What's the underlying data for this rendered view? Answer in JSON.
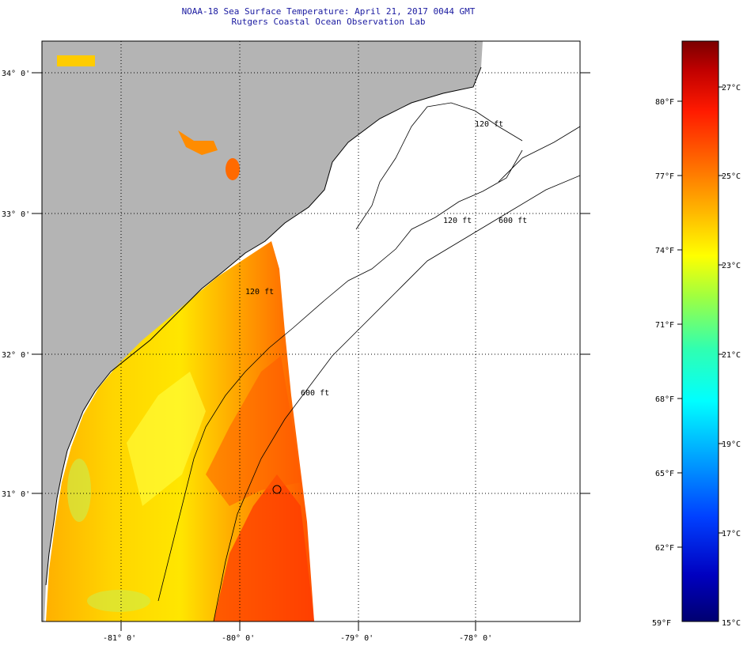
{
  "header": {
    "title_line1": "NOAA-18 Sea Surface Temperature:  April 21, 2017 0044 GMT",
    "title_line2": "Rutgers Coastal Ocean Observation Lab"
  },
  "map": {
    "lat_labels": [
      "34° 0'",
      "33° 0'",
      "32° 0'",
      "31° 0'"
    ],
    "lon_labels": [
      "-81° 0'",
      "-80° 0'",
      "-79° 0'",
      "-78° 0'"
    ],
    "contour_labels": [
      "120 ft",
      "600 ft",
      "120 ft",
      "600 ft",
      "120 ft"
    ],
    "land_color": "#b4b4b4",
    "nodata_color": "#ffffff"
  },
  "colorbar": {
    "f_labels": [
      "80°F",
      "77°F",
      "74°F",
      "71°F",
      "68°F",
      "65°F",
      "62°F",
      "59°F"
    ],
    "c_labels": [
      "27°C",
      "25°C",
      "23°C",
      "21°C",
      "19°C",
      "17°C",
      "15°C"
    ],
    "colors": [
      "#7a0000",
      "#c00000",
      "#ff1a00",
      "#ff6a00",
      "#ffb300",
      "#ffff00",
      "#a0ff40",
      "#30ffb0",
      "#00ffff",
      "#00a0ff",
      "#0040ff",
      "#0000c0",
      "#000070"
    ]
  }
}
